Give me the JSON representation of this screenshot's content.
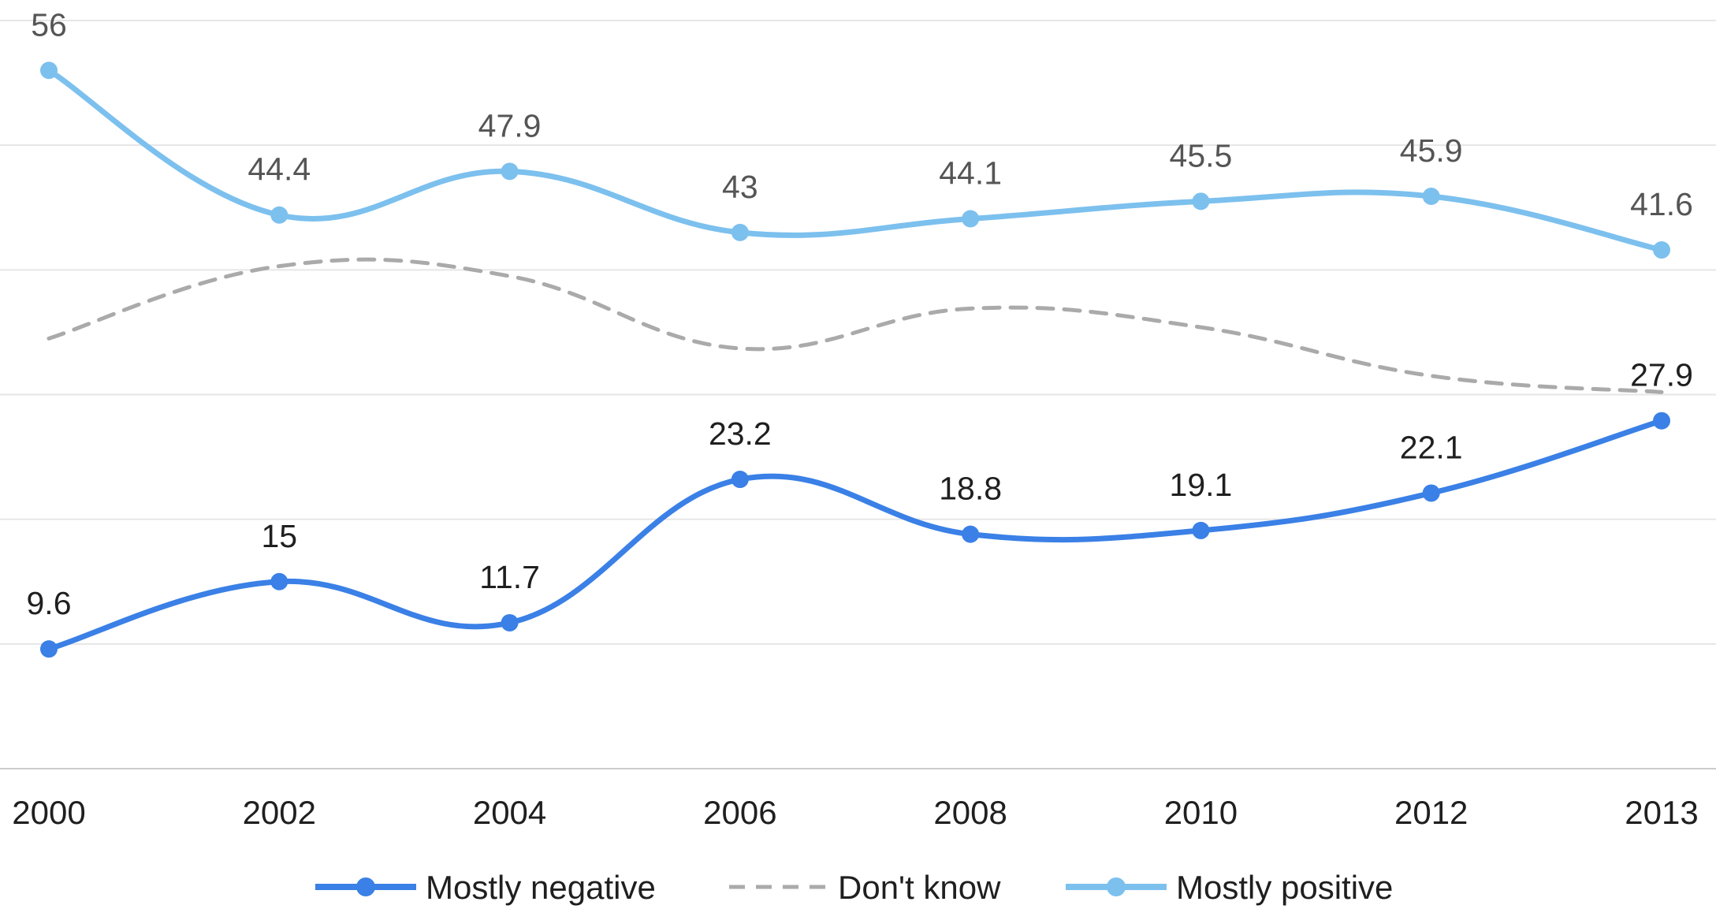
{
  "chart_data": {
    "type": "line",
    "title": "",
    "xlabel": "",
    "ylabel": "",
    "categories": [
      "2000",
      "2002",
      "2004",
      "2006",
      "2008",
      "2010",
      "2012",
      "2013"
    ],
    "ylim": [
      0,
      60
    ],
    "grid": true,
    "legend_position": "bottom",
    "series": [
      {
        "name": "Mostly negative",
        "values": [
          9.6,
          15,
          11.7,
          23.2,
          18.8,
          19.1,
          22.1,
          27.9
        ],
        "color": "#3a80e6",
        "style": "solid",
        "markers": true,
        "data_labels": true,
        "label_color": "#1f1f1f"
      },
      {
        "name": "Don't know",
        "values": [
          34.5,
          40.3,
          39.5,
          33.7,
          36.9,
          35.4,
          31.5,
          30.2
        ],
        "color": "#aaaaaa",
        "style": "dashed",
        "markers": false,
        "data_labels": false,
        "label_color": "#555555"
      },
      {
        "name": "Mostly positive",
        "values": [
          56,
          44.4,
          47.9,
          43,
          44.1,
          45.5,
          45.9,
          41.6
        ],
        "color": "#7cc0ee",
        "style": "solid",
        "markers": true,
        "data_labels": true,
        "label_color": "#555555"
      }
    ]
  }
}
